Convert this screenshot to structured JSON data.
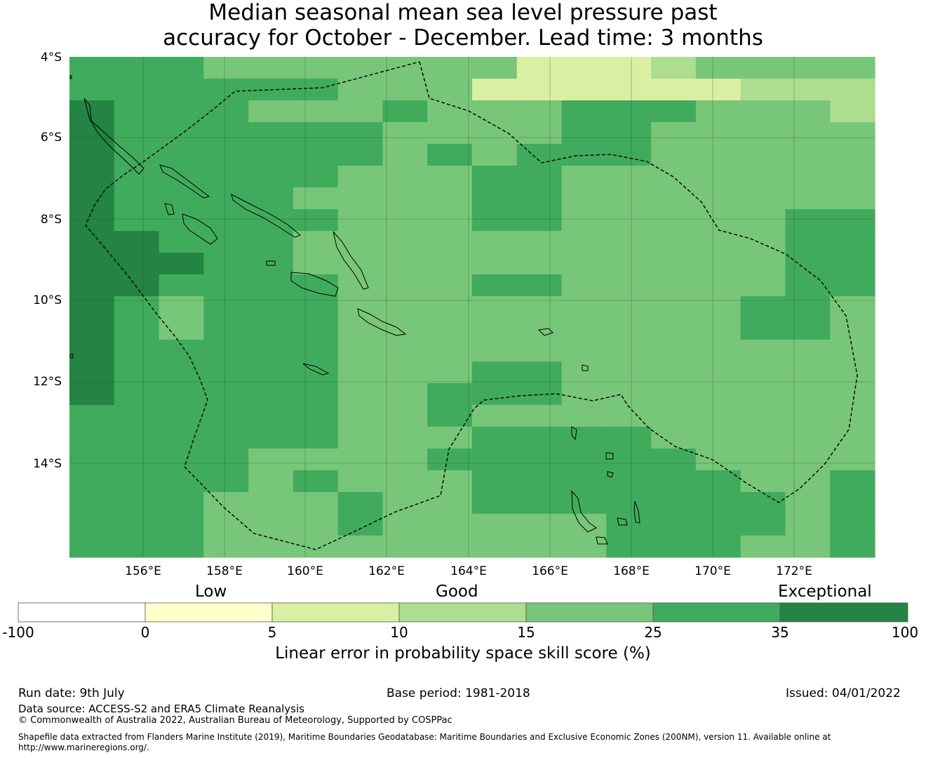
{
  "title": {
    "line1": "Median seasonal mean sea level pressure past",
    "line2": "accuracy for October - December. Lead time: 3 months"
  },
  "map": {
    "lat_ticks": [
      "4°S",
      "6°S",
      "8°S",
      "10°S",
      "12°S",
      "14°S"
    ],
    "lon_ticks": [
      "156°E",
      "158°E",
      "160°E",
      "162°E",
      "164°E",
      "166°E",
      "168°E",
      "170°E",
      "172°E"
    ],
    "palette": {
      "0": "#ffffcc",
      "1": "#d9f0a3",
      "2": "#addd8e",
      "3": "#78c679",
      "4": "#41ab5d",
      "5": "#238443"
    },
    "grid_rows": [
      "444333333311123333",
      "444444333111111222",
      "544433343334443332",
      "544444433334433333",
      "544444434344433333",
      "544444333443333333",
      "544443333443333333",
      "544444333443333344",
      "554443333333333344",
      "555443333333333344",
      "554444333443333344",
      "543444333333333443",
      "543444333333333443",
      "544444333333333333",
      "544444333443333333",
      "544444334443333333",
      "444444334333333333",
      "444444333444433333",
      "444433334444443333",
      "444434333444444334",
      "444333433444444434",
      "444333433333444434",
      "444333333333444334"
    ]
  },
  "colorbar": {
    "words": [
      "Low",
      "Good",
      "Exceptional"
    ],
    "ticks": [
      "-100",
      "0",
      "5",
      "10",
      "15",
      "25",
      "35",
      "100"
    ],
    "colors": [
      "#ffffff",
      "#ffffcc",
      "#d9f0a3",
      "#addd8e",
      "#78c679",
      "#41ab5d",
      "#238443"
    ],
    "label": "Linear error in probability space skill score (%)"
  },
  "footer": {
    "run_date": "Run date: 9th July",
    "base_period": "Base period: 1981-2018",
    "issued": "Issued: 04/01/2022",
    "data_source": "Data source: ACCESS-S2 and ERA5 Climate Reanalysis",
    "copyright": "© Commonwealth of Australia 2022, Australian Bureau of Meteorology, Supported by COSPPac",
    "shapefile_1": "Shapefile data extracted from Flanders Marine Institute (2019), Maritime Boundaries Geodatabase: Maritime Boundaries and Exclusive Economic Zones (200NM), version 11. Available online at",
    "shapefile_2": "http://www.marineregions.org/."
  }
}
